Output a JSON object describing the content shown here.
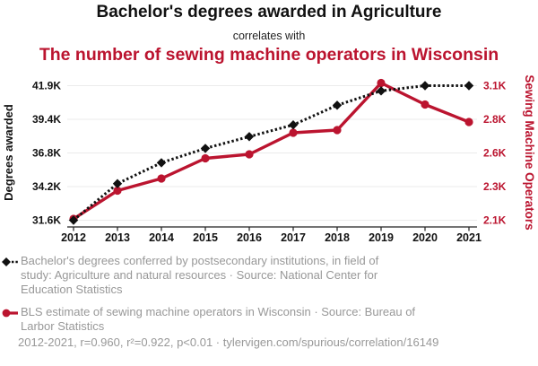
{
  "colors": {
    "red_series": "#BB142F",
    "black_series": "#111111",
    "grid": "#ebebeb",
    "axis": "#222222",
    "legend_text": "#989898"
  },
  "header": {
    "title": "Bachelor's degrees awarded in Agriculture",
    "connector": "correlates with",
    "subtitle": "The number of sewing machine operators in Wisconsin"
  },
  "chart_data": {
    "type": "line",
    "x": [
      2012,
      2013,
      2014,
      2015,
      2016,
      2017,
      2018,
      2019,
      2020,
      2021
    ],
    "x_tick_labels": [
      "2012",
      "2013",
      "2014",
      "2015",
      "2016",
      "2017",
      "2018",
      "2019",
      "2020",
      "2021"
    ],
    "series": [
      {
        "name": "Bachelor's degrees awarded in Agriculture",
        "axis": "left",
        "marker": "diamond",
        "line": "dotted",
        "values": [
          31600,
          34400,
          36000,
          37100,
          38000,
          38900,
          40400,
          41500,
          41900,
          41900
        ]
      },
      {
        "name": "Sewing machine operators in Wisconsin",
        "axis": "right",
        "marker": "circle",
        "line": "solid",
        "values": [
          2060,
          2270,
          2360,
          2510,
          2540,
          2700,
          2720,
          3070,
          2910,
          2780
        ]
      }
    ],
    "left_axis": {
      "label": "Degrees awarded",
      "tick_labels": [
        "31.6K",
        "34.2K",
        "36.8K",
        "39.4K",
        "41.9K"
      ],
      "range": [
        31600,
        41900
      ]
    },
    "right_axis": {
      "label": "Sewing Machine Operators",
      "tick_labels": [
        "2.1K",
        "2.3K",
        "2.6K",
        "2.8K",
        "3.1K"
      ],
      "range": [
        2050,
        3050
      ]
    },
    "grid": true,
    "legend_position": "bottom"
  },
  "legend": {
    "items": [
      {
        "series": "black-dotted-diamond",
        "lines": [
          "Bachelor's degrees conferred by postsecondary institutions, in field of",
          "study: Agriculture and natural resources · Source: National Center for",
          "Education Statistics"
        ]
      },
      {
        "series": "red-solid-circle",
        "lines": [
          "BLS estimate of sewing machine operators in Wisconsin · Source: Bureau of",
          "Larbor Statistics"
        ]
      }
    ]
  },
  "footer": {
    "text": "2012-2021, r=0.960, r²=0.922, p<0.01 · tylervigen.com/spurious/correlation/16149"
  }
}
